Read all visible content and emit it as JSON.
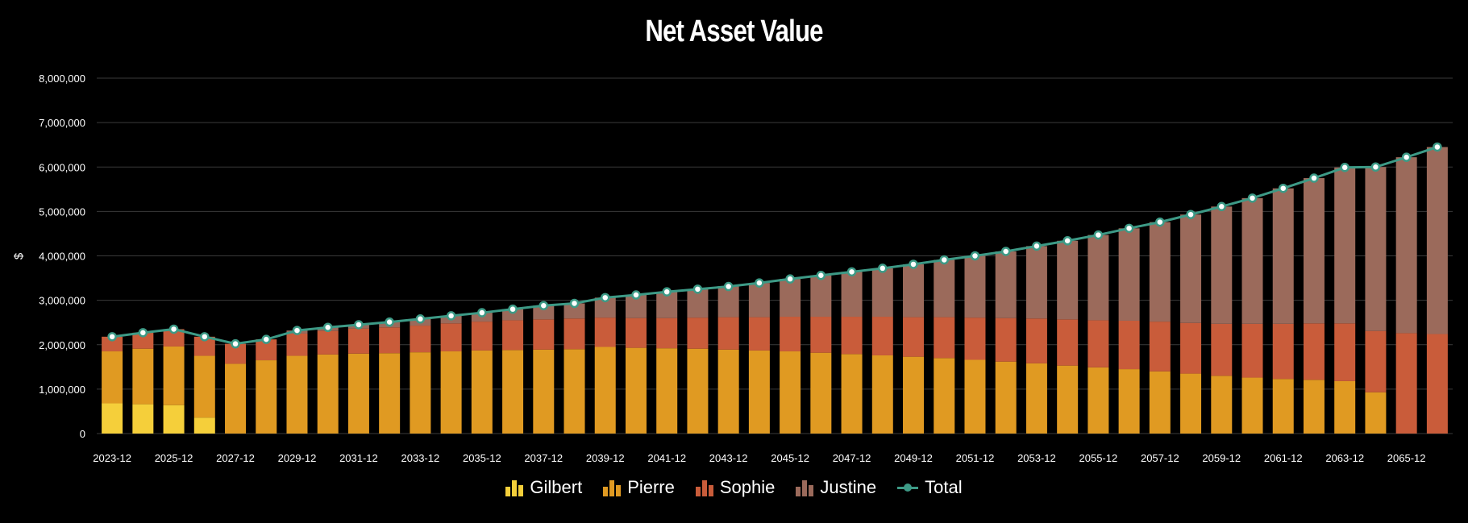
{
  "chart_data": {
    "type": "bar",
    "stacked": true,
    "title": "Net Asset Value",
    "ylabel": "$",
    "xlabel": "",
    "ylim": [
      0,
      8000000
    ],
    "yticks": [
      "0",
      "1,000,000",
      "2,000,000",
      "3,000,000",
      "4,000,000",
      "5,000,000",
      "6,000,000",
      "7,000,000",
      "8,000,000"
    ],
    "grid": true,
    "legend_position": "bottom",
    "categories": [
      "2023-12",
      "2024-12",
      "2025-12",
      "2026-12",
      "2027-12",
      "2028-12",
      "2029-12",
      "2030-12",
      "2031-12",
      "2032-12",
      "2033-12",
      "2034-12",
      "2035-12",
      "2036-12",
      "2037-12",
      "2038-12",
      "2039-12",
      "2040-12",
      "2041-12",
      "2042-12",
      "2043-12",
      "2044-12",
      "2045-12",
      "2046-12",
      "2047-12",
      "2048-12",
      "2049-12",
      "2050-12",
      "2051-12",
      "2052-12",
      "2053-12",
      "2054-12",
      "2055-12",
      "2056-12",
      "2057-12",
      "2058-12",
      "2059-12",
      "2060-12",
      "2061-12",
      "2062-12",
      "2063-12",
      "2064-12",
      "2065-12",
      "2066-12"
    ],
    "xtick_labels": [
      "2023-12",
      "2025-12",
      "2027-12",
      "2029-12",
      "2031-12",
      "2033-12",
      "2035-12",
      "2037-12",
      "2039-12",
      "2041-12",
      "2043-12",
      "2045-12",
      "2047-12",
      "2049-12",
      "2051-12",
      "2053-12",
      "2055-12",
      "2057-12",
      "2059-12",
      "2061-12",
      "2063-12",
      "2065-12"
    ],
    "series": [
      {
        "name": "Gilbert",
        "color": "#f5cf3a",
        "values": [
          680000,
          660000,
          640000,
          360000,
          0,
          0,
          0,
          0,
          0,
          0,
          0,
          0,
          0,
          0,
          0,
          0,
          0,
          0,
          0,
          0,
          0,
          0,
          0,
          0,
          0,
          0,
          0,
          0,
          0,
          0,
          0,
          0,
          0,
          0,
          0,
          0,
          0,
          0,
          0,
          0,
          0,
          0,
          0,
          0
        ]
      },
      {
        "name": "Pierre",
        "color": "#e09a22",
        "values": [
          1170000,
          1250000,
          1320000,
          1390000,
          1570000,
          1650000,
          1750000,
          1780000,
          1800000,
          1810000,
          1830000,
          1850000,
          1870000,
          1880000,
          1890000,
          1900000,
          1950000,
          1930000,
          1920000,
          1910000,
          1890000,
          1870000,
          1850000,
          1820000,
          1790000,
          1760000,
          1730000,
          1700000,
          1660000,
          1620000,
          1580000,
          1530000,
          1490000,
          1450000,
          1400000,
          1350000,
          1300000,
          1260000,
          1230000,
          1210000,
          1180000,
          930000,
          0,
          0
        ]
      },
      {
        "name": "Sophie",
        "color": "#c95c3a",
        "values": [
          330000,
          360000,
          390000,
          430000,
          450000,
          470000,
          500000,
          530000,
          560000,
          580000,
          600000,
          630000,
          650000,
          670000,
          680000,
          690000,
          660000,
          670000,
          680000,
          700000,
          730000,
          750000,
          780000,
          810000,
          840000,
          870000,
          890000,
          920000,
          950000,
          980000,
          1010000,
          1040000,
          1060000,
          1090000,
          1120000,
          1140000,
          1170000,
          1210000,
          1240000,
          1270000,
          1300000,
          1380000,
          2260000,
          2240000
        ]
      },
      {
        "name": "Justine",
        "color": "#9b6a5b",
        "values": [
          0,
          0,
          0,
          0,
          0,
          0,
          70000,
          80000,
          90000,
          120000,
          150000,
          170000,
          200000,
          250000,
          310000,
          340000,
          450000,
          520000,
          590000,
          640000,
          690000,
          770000,
          850000,
          930000,
          1010000,
          1090000,
          1190000,
          1290000,
          1390000,
          1500000,
          1630000,
          1770000,
          1920000,
          2080000,
          2240000,
          2440000,
          2640000,
          2830000,
          3050000,
          3270000,
          3510000,
          3690000,
          3960000,
          4210000
        ]
      },
      {
        "name": "Total",
        "type": "line",
        "color": "#3d9a86",
        "values": [
          2180000,
          2270000,
          2350000,
          2180000,
          2020000,
          2120000,
          2320000,
          2390000,
          2450000,
          2510000,
          2580000,
          2650000,
          2720000,
          2800000,
          2880000,
          2930000,
          3060000,
          3120000,
          3190000,
          3250000,
          3310000,
          3390000,
          3480000,
          3560000,
          3640000,
          3720000,
          3810000,
          3910000,
          4000000,
          4100000,
          4220000,
          4340000,
          4470000,
          4620000,
          4760000,
          4930000,
          5110000,
          5300000,
          5520000,
          5750000,
          5990000,
          6000000,
          6220000,
          6450000
        ]
      }
    ]
  },
  "colors": {
    "background": "#000000",
    "grid": "#3a3a3a",
    "marker_fill": "#ffffff"
  }
}
